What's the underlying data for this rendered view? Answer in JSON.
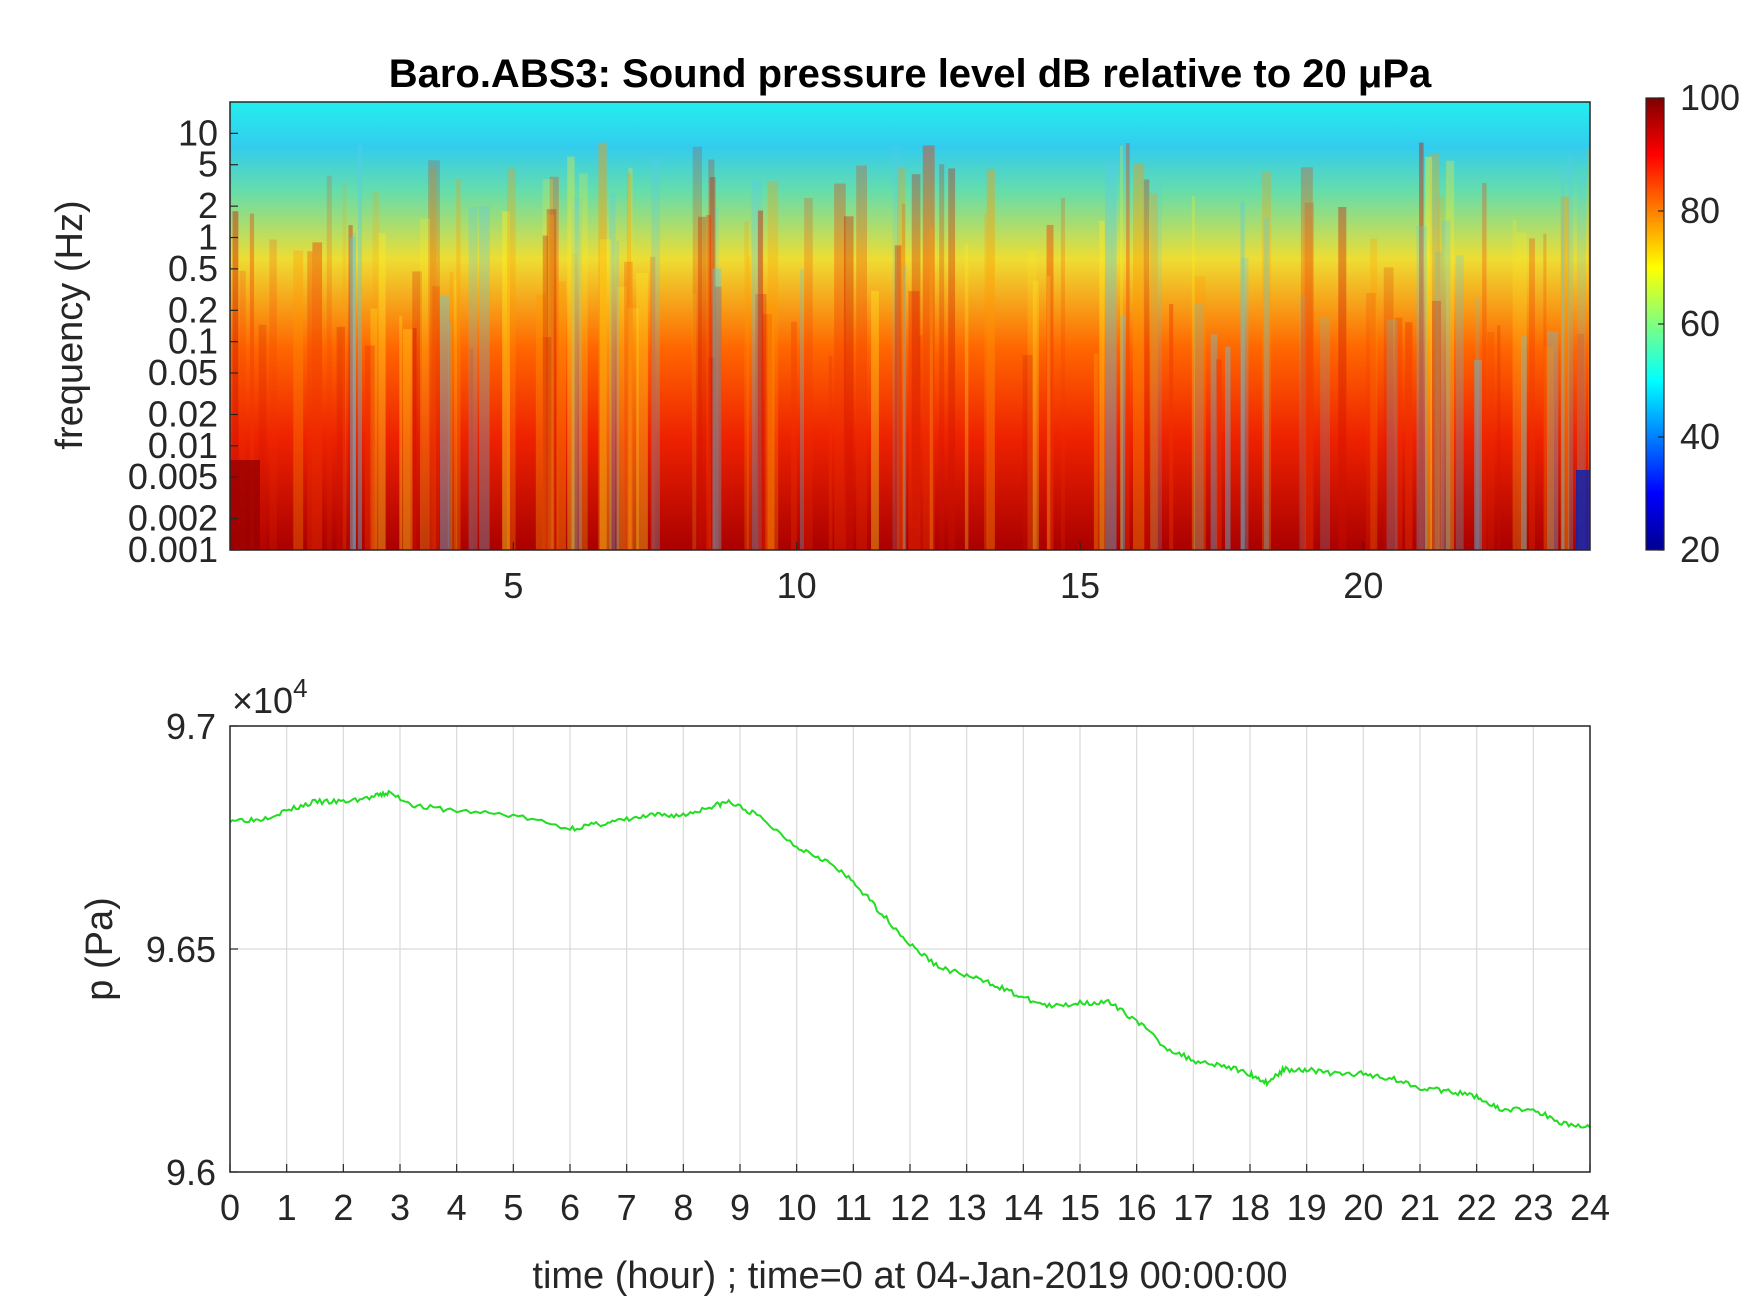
{
  "chart_data": [
    {
      "type": "heatmap",
      "title": "Baro.ABS3: Sound pressure level dB relative to 20 μPa",
      "xlabel": "",
      "ylabel": "frequency (Hz)",
      "x_ticks": [
        "5",
        "10",
        "15",
        "20"
      ],
      "x_range": [
        0,
        24
      ],
      "y_scale": "log",
      "y_ticks": [
        "10",
        "5",
        "2",
        "1",
        "0.5",
        "0.2",
        "0.1",
        "0.05",
        "0.02",
        "0.01",
        "0.005",
        "0.002",
        "0.001"
      ],
      "y_range": [
        0.001,
        20
      ],
      "colorbar": {
        "colormap": "jet",
        "range": [
          20,
          100
        ],
        "ticks": [
          "20",
          "40",
          "60",
          "80",
          "100"
        ]
      },
      "description_levels_db": {
        "above_5Hz": 50,
        "0.5_to_5Hz": 58,
        "0.02_to_0.5Hz": 78,
        "below_0.02Hz": 90
      }
    },
    {
      "type": "line",
      "title": "",
      "xlabel": "time (hour) ; time=0 at 04-Jan-2019 00:00:00",
      "ylabel": "p (Pa)",
      "y_multiplier": "×10",
      "y_multiplier_exp": "4",
      "x_ticks": [
        "0",
        "1",
        "2",
        "3",
        "4",
        "5",
        "6",
        "7",
        "8",
        "9",
        "10",
        "11",
        "12",
        "13",
        "14",
        "15",
        "16",
        "17",
        "18",
        "19",
        "20",
        "21",
        "22",
        "23",
        "24"
      ],
      "y_ticks": [
        "9.7",
        "9.65",
        "9.6"
      ],
      "xlim": [
        0,
        24
      ],
      "ylim": [
        9.6,
        9.7
      ],
      "grid": true,
      "line_color": "#22dd22",
      "series": [
        {
          "x": [
            0,
            0.5,
            1,
            1.5,
            2,
            2.5,
            2.8,
            3.3,
            4,
            5,
            6,
            6.5,
            7,
            7.5,
            8,
            8.5,
            8.8,
            9.3,
            10,
            10.5,
            11,
            11.5,
            12,
            12.5,
            13,
            13.5,
            14,
            14.5,
            15,
            15.5,
            16,
            16.5,
            17,
            17.5,
            18,
            18.3,
            18.6,
            19,
            19.5,
            20,
            20.5,
            21,
            21.5,
            22,
            22.4,
            23,
            23.5,
            24
          ],
          "y": [
            9.679,
            9.679,
            9.681,
            9.683,
            9.683,
            9.684,
            9.685,
            9.682,
            9.681,
            9.68,
            9.677,
            9.678,
            9.679,
            9.68,
            9.68,
            9.682,
            9.683,
            9.68,
            9.673,
            9.67,
            9.665,
            9.658,
            9.651,
            9.646,
            9.644,
            9.642,
            9.639,
            9.637,
            9.638,
            9.638,
            9.634,
            9.628,
            9.625,
            9.624,
            9.622,
            9.62,
            9.623,
            9.623,
            9.622,
            9.622,
            9.621,
            9.619,
            9.618,
            9.617,
            9.614,
            9.614,
            9.611,
            9.61
          ]
        }
      ]
    }
  ]
}
